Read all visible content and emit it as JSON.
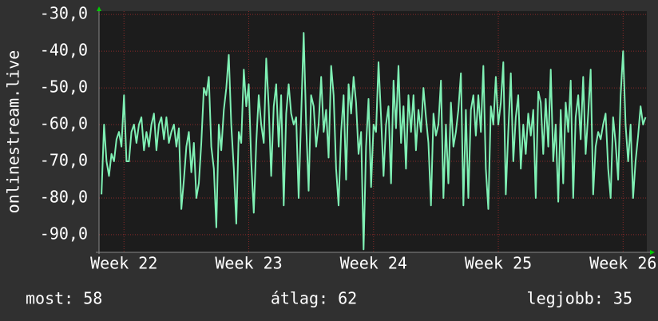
{
  "chart_data": {
    "type": "line",
    "ylabel": "onlinestream.live",
    "color": "#7ff0b4",
    "grid": true,
    "xlim": [
      21.8,
      26.19
    ],
    "ylim": [
      -94.8,
      -29.1
    ],
    "yticks": [
      {
        "value": -30,
        "label": "-30,0"
      },
      {
        "value": -40,
        "label": "-40,0"
      },
      {
        "value": -50,
        "label": "-50,0"
      },
      {
        "value": -60,
        "label": "-60,0"
      },
      {
        "value": -70,
        "label": "-70,0"
      },
      {
        "value": -80,
        "label": "-80,0"
      },
      {
        "value": -90,
        "label": "-90,0"
      }
    ],
    "xticks": [
      {
        "value": 22,
        "label": "Week 22"
      },
      {
        "value": 23,
        "label": "Week 23"
      },
      {
        "value": 24,
        "label": "Week 24"
      },
      {
        "value": 25,
        "label": "Week 25"
      },
      {
        "value": 26,
        "label": "Week 26"
      }
    ],
    "x": [
      21.82,
      21.84,
      21.86,
      21.88,
      21.9,
      21.92,
      21.94,
      21.96,
      21.98,
      22,
      22.02,
      22.04,
      22.06,
      22.08,
      22.1,
      22.12,
      22.14,
      22.16,
      22.18,
      22.2,
      22.22,
      22.24,
      22.26,
      22.28,
      22.3,
      22.32,
      22.34,
      22.36,
      22.38,
      22.4,
      22.42,
      22.44,
      22.46,
      22.48,
      22.5,
      22.52,
      22.54,
      22.56,
      22.58,
      22.6,
      22.62,
      22.64,
      22.66,
      22.68,
      22.7,
      22.72,
      22.74,
      22.76,
      22.78,
      22.8,
      22.82,
      22.84,
      22.86,
      22.88,
      22.9,
      22.92,
      22.94,
      22.96,
      22.98,
      23,
      23.02,
      23.04,
      23.06,
      23.08,
      23.1,
      23.12,
      23.14,
      23.16,
      23.18,
      23.2,
      23.22,
      23.24,
      23.26,
      23.28,
      23.3,
      23.32,
      23.34,
      23.36,
      23.38,
      23.4,
      23.42,
      23.44,
      23.46,
      23.48,
      23.5,
      23.52,
      23.54,
      23.56,
      23.58,
      23.6,
      23.62,
      23.64,
      23.66,
      23.68,
      23.7,
      23.72,
      23.74,
      23.76,
      23.78,
      23.8,
      23.82,
      23.84,
      23.86,
      23.88,
      23.9,
      23.92,
      23.94,
      23.96,
      23.98,
      24,
      24.02,
      24.04,
      24.06,
      24.08,
      24.1,
      24.12,
      24.14,
      24.16,
      24.18,
      24.2,
      24.22,
      24.24,
      24.26,
      24.28,
      24.3,
      24.32,
      24.34,
      24.36,
      24.38,
      24.4,
      24.42,
      24.44,
      24.46,
      24.48,
      24.5,
      24.52,
      24.54,
      24.56,
      24.58,
      24.6,
      24.62,
      24.64,
      24.66,
      24.68,
      24.7,
      24.72,
      24.74,
      24.76,
      24.78,
      24.8,
      24.82,
      24.84,
      24.86,
      24.88,
      24.9,
      24.92,
      24.94,
      24.96,
      24.98,
      25,
      25.02,
      25.04,
      25.06,
      25.08,
      25.1,
      25.12,
      25.14,
      25.16,
      25.18,
      25.2,
      25.22,
      25.24,
      25.26,
      25.28,
      25.3,
      25.32,
      25.34,
      25.36,
      25.38,
      25.4,
      25.42,
      25.44,
      25.46,
      25.48,
      25.5,
      25.52,
      25.54,
      25.56,
      25.58,
      25.6,
      25.62,
      25.64,
      25.66,
      25.68,
      25.7,
      25.72,
      25.74,
      25.76,
      25.78,
      25.8,
      25.82,
      25.84,
      25.86,
      25.88,
      25.9,
      25.92,
      25.94,
      25.96,
      25.98,
      26,
      26.02,
      26.04,
      26.06,
      26.08,
      26.1,
      26.12,
      26.14,
      26.16,
      26.18
    ],
    "values": [
      -79,
      -60,
      -70,
      -74,
      -68,
      -70,
      -64,
      -62,
      -66,
      -52,
      -70,
      -70,
      -62,
      -60,
      -65,
      -60,
      -58,
      -67,
      -62,
      -66,
      -60,
      -57,
      -67,
      -60,
      -58,
      -64,
      -58,
      -65,
      -62,
      -60,
      -66,
      -61,
      -83,
      -75,
      -66,
      -62,
      -73,
      -65,
      -80,
      -76,
      -65,
      -50,
      -52,
      -47,
      -66,
      -72,
      -88,
      -60,
      -67,
      -56,
      -50,
      -41,
      -60,
      -72,
      -87,
      -62,
      -65,
      -45,
      -55,
      -49,
      -70,
      -84,
      -65,
      -52,
      -60,
      -65,
      -42,
      -55,
      -74,
      -55,
      -49,
      -66,
      -52,
      -82,
      -57,
      -49,
      -57,
      -60,
      -58,
      -80,
      -58,
      -35,
      -60,
      -78,
      -52,
      -55,
      -66,
      -60,
      -47,
      -62,
      -56,
      -69,
      -44,
      -52,
      -72,
      -82,
      -62,
      -52,
      -75,
      -49,
      -57,
      -47,
      -54,
      -68,
      -62,
      -94,
      -66,
      -53,
      -77,
      -60,
      -62,
      -43,
      -58,
      -74,
      -60,
      -55,
      -76,
      -48,
      -61,
      -44,
      -65,
      -55,
      -72,
      -52,
      -62,
      -52,
      -67,
      -56,
      -62,
      -50,
      -58,
      -65,
      -82,
      -57,
      -63,
      -60,
      -48,
      -80,
      -60,
      -76,
      -54,
      -66,
      -62,
      -56,
      -46,
      -82,
      -56,
      -80,
      -56,
      -52,
      -63,
      -52,
      -62,
      -44,
      -72,
      -83,
      -55,
      -60,
      -47,
      -60,
      -54,
      -43,
      -79,
      -62,
      -46,
      -70,
      -58,
      -52,
      -72,
      -60,
      -68,
      -57,
      -63,
      -56,
      -80,
      -51,
      -54,
      -68,
      -53,
      -66,
      -45,
      -70,
      -60,
      -81,
      -56,
      -76,
      -54,
      -62,
      -48,
      -80,
      -58,
      -52,
      -64,
      -47,
      -68,
      -57,
      -45,
      -79,
      -66,
      -62,
      -64,
      -60,
      -57,
      -72,
      -80,
      -58,
      -65,
      -75,
      -52,
      -40,
      -60,
      -70,
      -60,
      -80,
      -70,
      -63,
      -55,
      -60,
      -58
    ],
    "footer": [
      "most: 58",
      "átlag: 62",
      "legjobb: 35"
    ]
  }
}
